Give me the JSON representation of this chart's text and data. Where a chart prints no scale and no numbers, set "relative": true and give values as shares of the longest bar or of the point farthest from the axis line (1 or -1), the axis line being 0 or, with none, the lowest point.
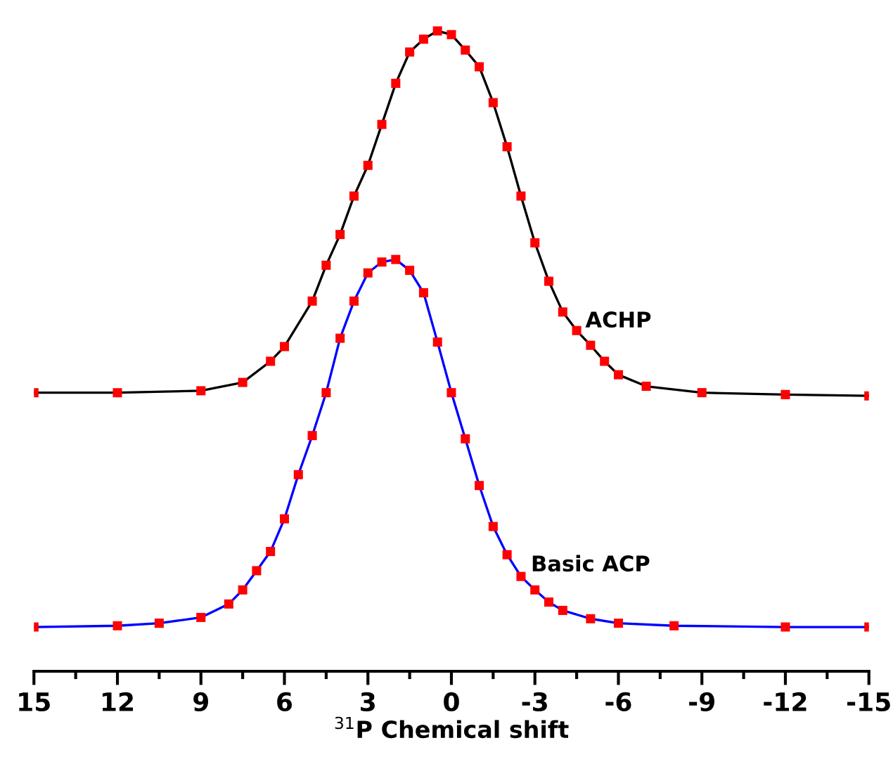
{
  "chart_data": {
    "type": "line",
    "relative": true,
    "xlabel": "$^{31}$P Chemical shift",
    "xlim": [
      15,
      -15
    ],
    "xticks": [
      15,
      12,
      9,
      6,
      3,
      0,
      -3,
      -6,
      -9,
      -12,
      -15
    ],
    "tick_labels": "x",
    "grid": false,
    "legend": false,
    "series": [
      {
        "name": "ACHP",
        "color": "#000000",
        "line_style": "solid",
        "x": [
          15,
          12,
          9,
          7.5,
          6.5,
          6,
          5,
          4.5,
          4,
          3.5,
          3,
          2.5,
          2,
          1.5,
          1,
          0.5,
          0,
          -0.5,
          -1,
          -1.5,
          -2,
          -2.5,
          -3,
          -3.5,
          -4,
          -4.5,
          -5,
          -5.5,
          -6,
          -7,
          -9,
          -12,
          -15
        ],
        "values": [
          0.435,
          0.435,
          0.438,
          0.451,
          0.484,
          0.507,
          0.578,
          0.634,
          0.682,
          0.742,
          0.79,
          0.854,
          0.918,
          0.967,
          0.987,
          1.0,
          0.994,
          0.97,
          0.944,
          0.888,
          0.819,
          0.742,
          0.669,
          0.609,
          0.561,
          0.532,
          0.509,
          0.484,
          0.463,
          0.445,
          0.435,
          0.432,
          0.43
        ]
      },
      {
        "type": "scatter",
        "color": "#ff0000",
        "marker": "square",
        "x": [
          15,
          12,
          9,
          7.5,
          6.5,
          6,
          5,
          4.5,
          4,
          3.5,
          3,
          2.5,
          2,
          1.5,
          1,
          0.5,
          0,
          -0.5,
          -1,
          -1.5,
          -2,
          -2.5,
          -3,
          -3.5,
          -4,
          -4.5,
          -5,
          -5.5,
          -6,
          -7,
          -9,
          -12,
          -15
        ],
        "values": [
          0.435,
          0.435,
          0.438,
          0.451,
          0.484,
          0.507,
          0.578,
          0.634,
          0.682,
          0.742,
          0.79,
          0.854,
          0.918,
          0.967,
          0.987,
          1.0,
          0.994,
          0.97,
          0.944,
          0.888,
          0.819,
          0.742,
          0.669,
          0.609,
          0.561,
          0.532,
          0.509,
          0.484,
          0.463,
          0.445,
          0.435,
          0.432,
          0.43
        ]
      },
      {
        "name": "Basic ACP",
        "color": "#0000ff",
        "line_style": "solid",
        "x": [
          15,
          12,
          10.5,
          9,
          8,
          7.5,
          7,
          6.5,
          6,
          5.5,
          5,
          4.5,
          4,
          3.5,
          3,
          2.5,
          2,
          1.5,
          1,
          0.5,
          0,
          -0.5,
          -1,
          -1.5,
          -2,
          -2.5,
          -3,
          -3.5,
          -4,
          -5,
          -6,
          -8,
          -12,
          -15
        ],
        "values": [
          0.069,
          0.071,
          0.075,
          0.084,
          0.105,
          0.127,
          0.157,
          0.187,
          0.238,
          0.307,
          0.368,
          0.435,
          0.52,
          0.578,
          0.622,
          0.639,
          0.643,
          0.626,
          0.591,
          0.514,
          0.435,
          0.363,
          0.29,
          0.226,
          0.182,
          0.148,
          0.127,
          0.108,
          0.095,
          0.082,
          0.075,
          0.071,
          0.069,
          0.069
        ]
      },
      {
        "type": "scatter",
        "color": "#ff0000",
        "marker": "square",
        "x": [
          15,
          12,
          10.5,
          9,
          8,
          7.5,
          7,
          6.5,
          6,
          5.5,
          5,
          4.5,
          4,
          3.5,
          3,
          2.5,
          2,
          1.5,
          1,
          0.5,
          0,
          -0.5,
          -1,
          -1.5,
          -2,
          -2.5,
          -3,
          -3.5,
          -4,
          -5,
          -6,
          -8,
          -12,
          -15
        ],
        "values": [
          0.069,
          0.071,
          0.075,
          0.084,
          0.105,
          0.127,
          0.157,
          0.187,
          0.238,
          0.307,
          0.368,
          0.435,
          0.52,
          0.578,
          0.622,
          0.639,
          0.643,
          0.626,
          0.591,
          0.514,
          0.435,
          0.363,
          0.29,
          0.226,
          0.182,
          0.148,
          0.127,
          0.108,
          0.095,
          0.082,
          0.075,
          0.071,
          0.069,
          0.069
        ]
      }
    ]
  }
}
